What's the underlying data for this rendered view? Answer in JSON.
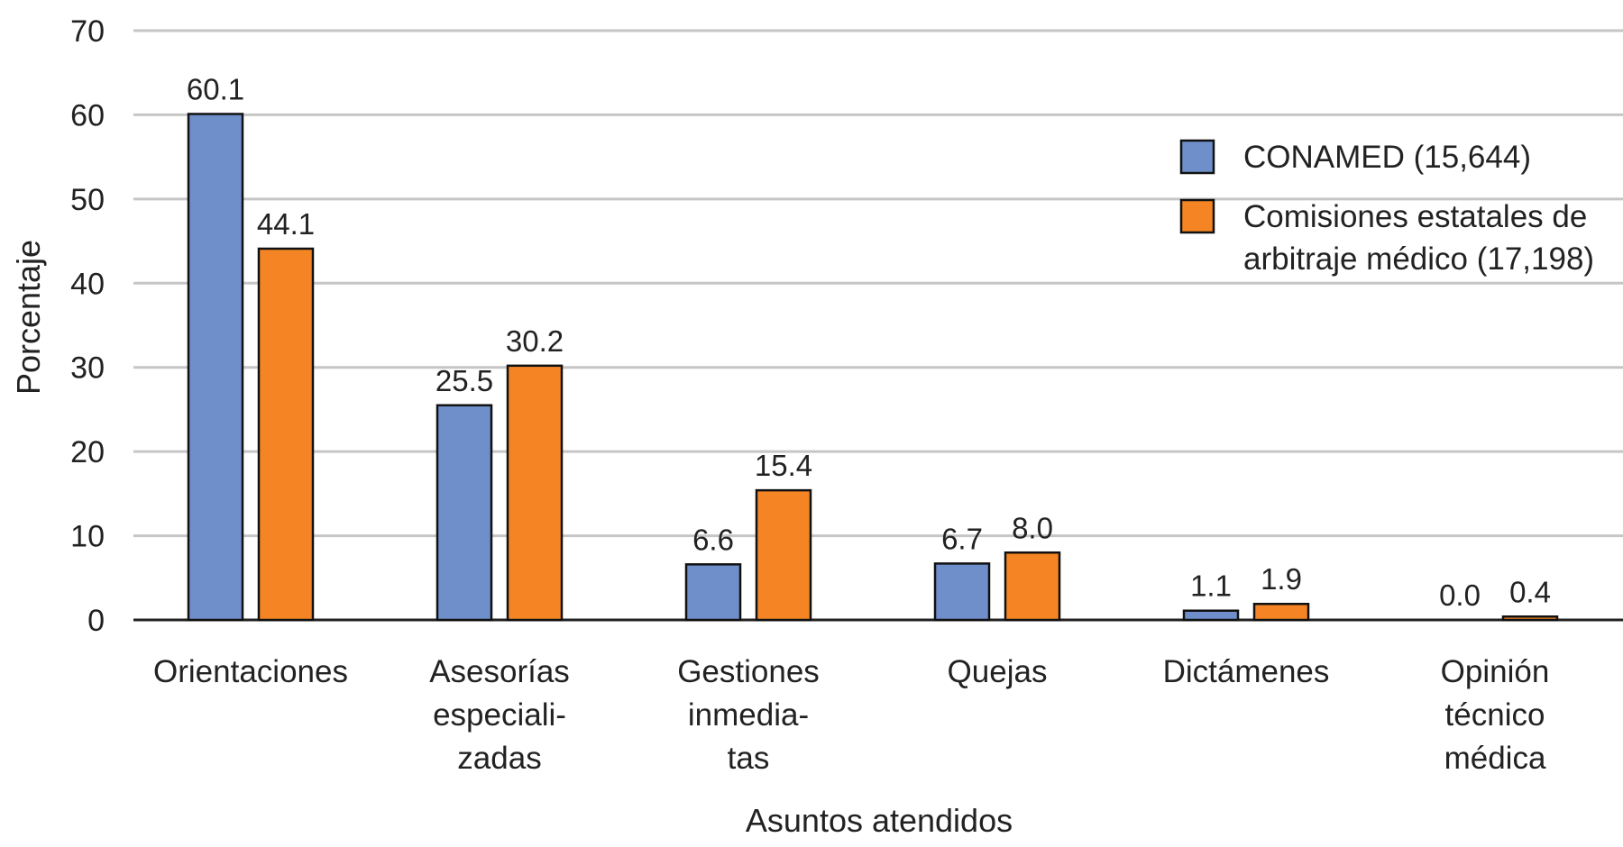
{
  "chart_data": {
    "type": "bar",
    "title": "",
    "xlabel": "Asuntos atendidos",
    "ylabel": "Porcentaje",
    "ylim": [
      0,
      70
    ],
    "yticks": [
      0,
      10,
      20,
      30,
      40,
      50,
      60,
      70
    ],
    "grid": true,
    "legend_position": "top-right",
    "categories": [
      [
        "Orientaciones"
      ],
      [
        "Asesorías",
        "especiali-",
        "zadas"
      ],
      [
        "Gestiones",
        "inmedia-",
        "tas"
      ],
      [
        "Quejas"
      ],
      [
        "Dictámenes"
      ],
      [
        "Opinión",
        "técnico",
        "médica"
      ]
    ],
    "series": [
      {
        "name": "CONAMED (15,644)",
        "legend_lines": [
          "CONAMED (15,644)"
        ],
        "color": "#6f8fca",
        "values": [
          60.1,
          25.5,
          6.6,
          6.7,
          1.1,
          0.0
        ],
        "labels": [
          "60.1",
          "25.5",
          "6.6",
          "6.7",
          "1.1",
          "0.0"
        ]
      },
      {
        "name": "Comisiones estatales de arbitraje médico (17,198)",
        "legend_lines": [
          "Comisiones estatales de",
          "arbitraje médico (17,198)"
        ],
        "color": "#f58524",
        "values": [
          44.1,
          30.2,
          15.4,
          8.0,
          1.9,
          0.4
        ],
        "labels": [
          "44.1",
          "30.2",
          "15.4",
          "8.0",
          "1.9",
          "0.4"
        ]
      }
    ]
  }
}
